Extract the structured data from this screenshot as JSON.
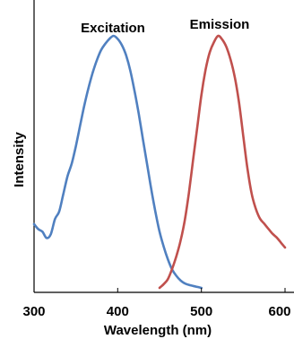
{
  "chart_data": {
    "type": "line",
    "title": "",
    "xlabel": "Wavelength (nm)",
    "ylabel": "Intensity",
    "xlim": [
      300,
      600
    ],
    "ylim": [
      0,
      1.0
    ],
    "xticks": [
      "300",
      "400",
      "500",
      "600"
    ],
    "grid": false,
    "legend": "none",
    "series": [
      {
        "name": "Excitation",
        "color": "#5080c0",
        "x": [
          300,
          305,
          310,
          315,
          320,
          325,
          330,
          335,
          340,
          345,
          350,
          355,
          360,
          365,
          370,
          375,
          380,
          385,
          390,
          395,
          400,
          405,
          410,
          415,
          420,
          425,
          430,
          435,
          440,
          445,
          450,
          455,
          460,
          465,
          470,
          475,
          480,
          485,
          490,
          495,
          500
        ],
        "y": [
          0.253,
          0.233,
          0.223,
          0.198,
          0.213,
          0.273,
          0.303,
          0.373,
          0.443,
          0.493,
          0.563,
          0.643,
          0.723,
          0.793,
          0.853,
          0.903,
          0.943,
          0.968,
          0.988,
          1.0,
          0.988,
          0.963,
          0.923,
          0.863,
          0.783,
          0.693,
          0.593,
          0.493,
          0.393,
          0.303,
          0.223,
          0.163,
          0.113,
          0.073,
          0.048,
          0.03,
          0.018,
          0.012,
          0.008,
          0.004,
          0.0
        ]
      },
      {
        "name": "Emission",
        "color": "#c0504d",
        "x": [
          450,
          455,
          460,
          465,
          470,
          475,
          480,
          485,
          490,
          495,
          500,
          505,
          510,
          515,
          520,
          525,
          530,
          535,
          540,
          545,
          550,
          555,
          560,
          565,
          570,
          575,
          580,
          585,
          590,
          595,
          600
        ],
        "y": [
          0.0,
          0.015,
          0.035,
          0.075,
          0.125,
          0.185,
          0.265,
          0.375,
          0.505,
          0.635,
          0.765,
          0.865,
          0.935,
          0.975,
          1.0,
          0.985,
          0.955,
          0.905,
          0.835,
          0.735,
          0.605,
          0.475,
          0.375,
          0.315,
          0.275,
          0.255,
          0.235,
          0.215,
          0.2,
          0.18,
          0.16
        ]
      }
    ]
  }
}
